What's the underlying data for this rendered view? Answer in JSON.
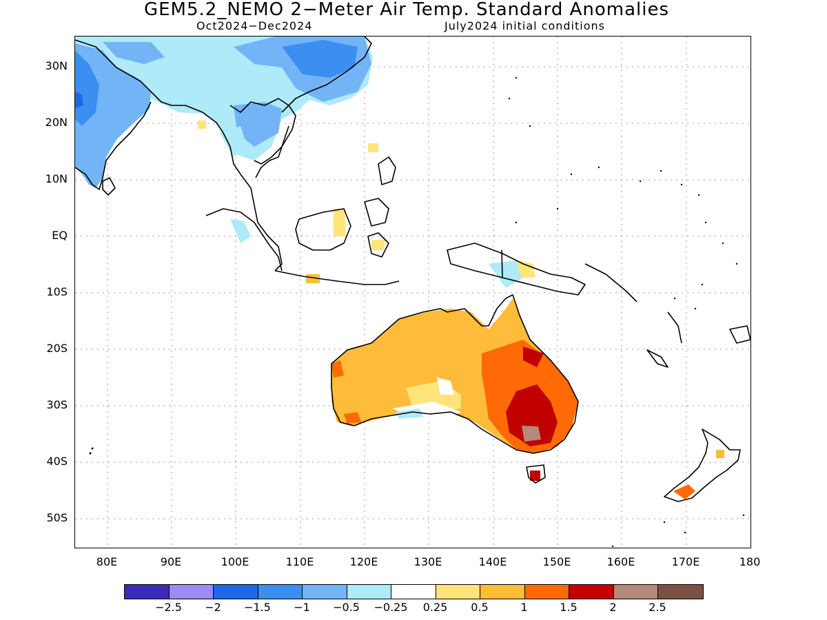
{
  "title": "GEM5.2_NEMO 2−Meter Air Temp. Standard Anomalies",
  "subtitle_left": "Oct2024−Dec2024",
  "subtitle_right": "July2024 initial conditions",
  "lat_labels": [
    "30N",
    "20N",
    "10N",
    "EQ",
    "10S",
    "20S",
    "30S",
    "40S",
    "50S"
  ],
  "lon_labels": [
    "80E",
    "90E",
    "100E",
    "110E",
    "120E",
    "130E",
    "140E",
    "150E",
    "160E",
    "170E",
    "180"
  ],
  "colorbar": {
    "colors": [
      "#3a2ab5",
      "#9f8bf5",
      "#1f68e5",
      "#3c8ff0",
      "#73b4f7",
      "#aeeaf7",
      "#ffffff",
      "#ffe47a",
      "#ffbb3a",
      "#ff6a07",
      "#c10000",
      "#b48a7d",
      "#7a5143"
    ],
    "labels": [
      "−2.5",
      "−2",
      "−1.5",
      "−1",
      "−0.5",
      "−0.25",
      "0.25",
      "0.5",
      "1",
      "1.5",
      "2",
      "2.5"
    ]
  }
}
